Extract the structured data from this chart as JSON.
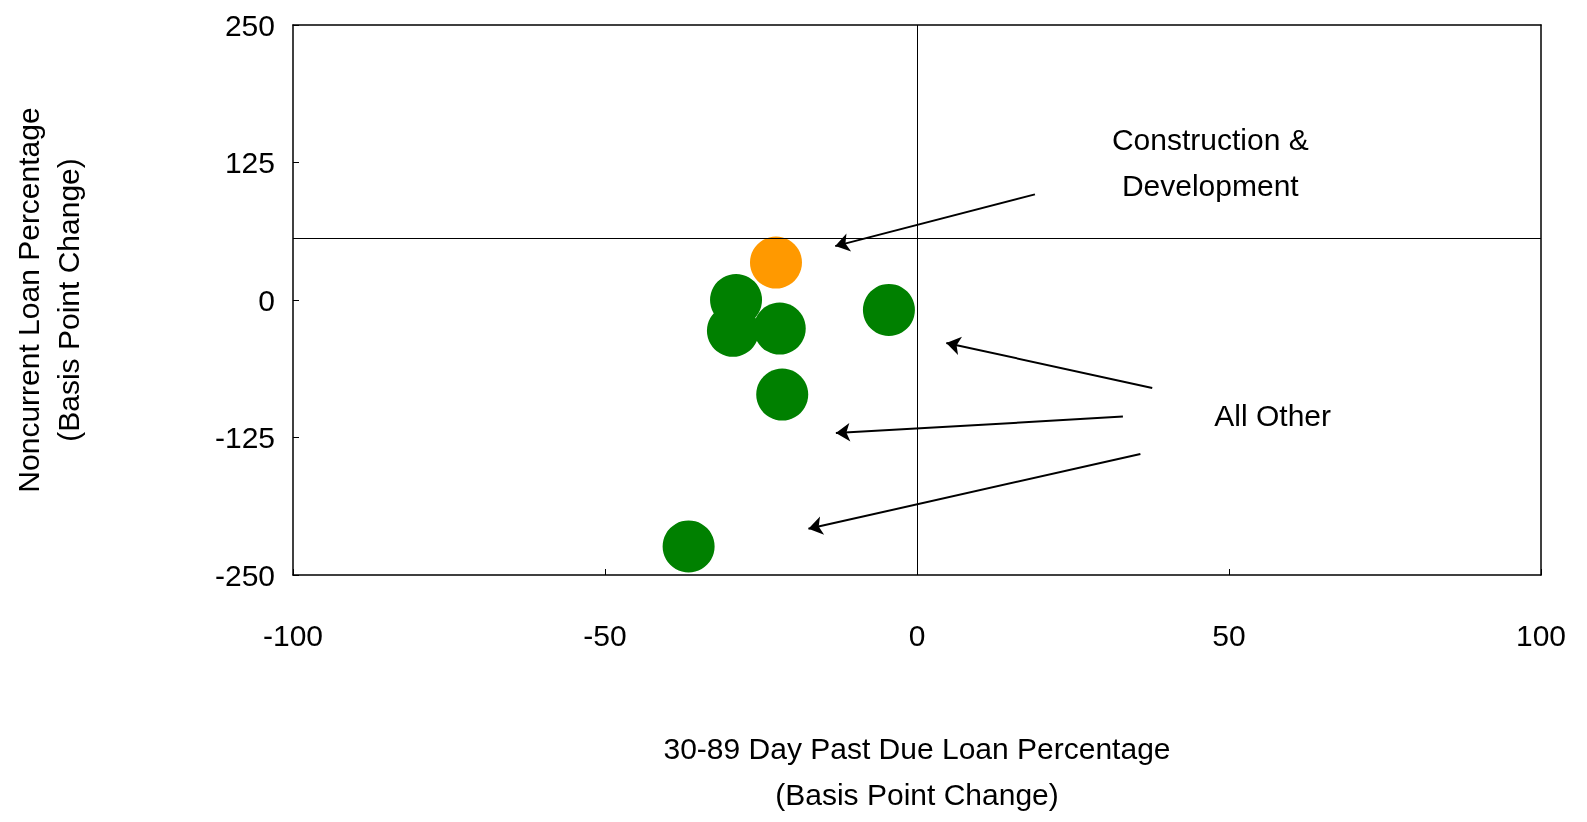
{
  "chart_data": {
    "type": "scatter",
    "xlabel": "30-89 Day Past Due Loan Percentage\n(Basis Point Change)",
    "ylabel": "Noncurrent Loan Percentage\n(Basis Point Change)",
    "series": [
      {
        "color": "#ff9900",
        "x": [
          -22.6
        ],
        "values": [
          34
        ]
      },
      {
        "color": "#008000",
        "x": [
          -29,
          -29.5,
          -22,
          -4.5,
          -21.6,
          -36.6
        ],
        "values": [
          0,
          -28,
          -26,
          -9,
          -86,
          -224
        ]
      }
    ],
    "xlim": [
      -100,
      100
    ],
    "xticks": [
      -100,
      -50,
      0,
      50,
      100
    ],
    "ylim": [
      -250,
      250
    ],
    "yticks": [
      -250,
      -125,
      0,
      125,
      250
    ],
    "ref_lines": [
      {
        "axis": "x",
        "value": 0
      },
      {
        "axis": "y",
        "value": 56
      }
    ],
    "marker": "circle",
    "annotations": [
      "Construction &\nDevelopment",
      "All Other"
    ]
  }
}
